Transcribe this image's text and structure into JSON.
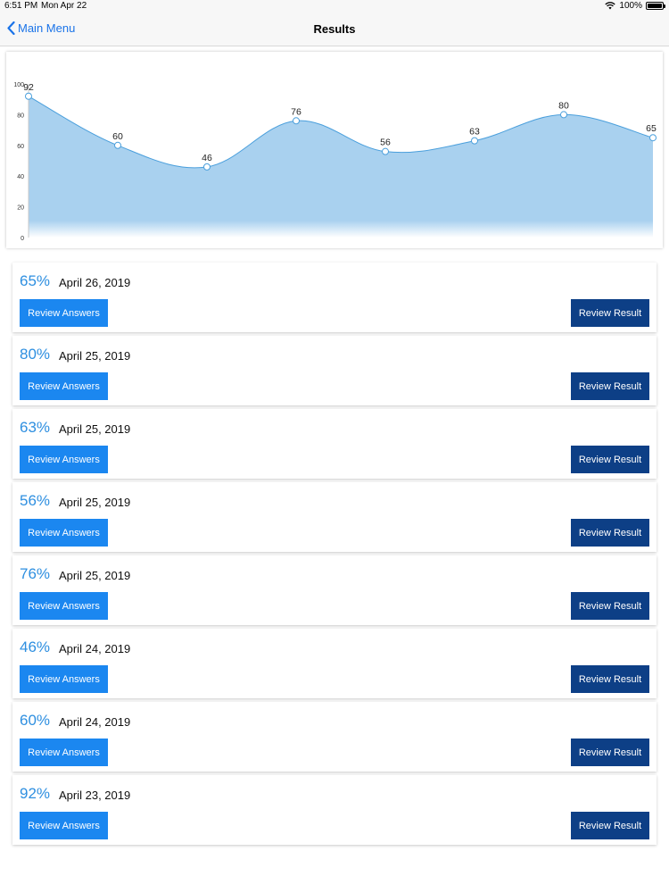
{
  "status_bar": {
    "time": "6:51 PM",
    "date": "Mon Apr 22",
    "battery": "100%"
  },
  "nav": {
    "back_label": "Main Menu",
    "title": "Results"
  },
  "chart_data": {
    "type": "area",
    "x": [
      1,
      2,
      3,
      4,
      5,
      6,
      7,
      8
    ],
    "values": [
      92,
      60,
      46,
      76,
      56,
      63,
      80,
      65
    ],
    "ylim": [
      0,
      100
    ],
    "yticks": [
      "0",
      "20",
      "40",
      "60",
      "80",
      "100"
    ],
    "grid": false,
    "legend": "none",
    "fill_color": "#a9d1ef",
    "line_color": "#4a9fdc"
  },
  "results": [
    {
      "score": "65%",
      "date": "April 26, 2019",
      "answers_label": "Review Answers",
      "result_label": "Review Result"
    },
    {
      "score": "80%",
      "date": "April 25, 2019",
      "answers_label": "Review Answers",
      "result_label": "Review Result"
    },
    {
      "score": "63%",
      "date": "April 25, 2019",
      "answers_label": "Review Answers",
      "result_label": "Review Result"
    },
    {
      "score": "56%",
      "date": "April 25, 2019",
      "answers_label": "Review Answers",
      "result_label": "Review Result"
    },
    {
      "score": "76%",
      "date": "April 25, 2019",
      "answers_label": "Review Answers",
      "result_label": "Review Result"
    },
    {
      "score": "46%",
      "date": "April 24, 2019",
      "answers_label": "Review Answers",
      "result_label": "Review Result"
    },
    {
      "score": "60%",
      "date": "April 24, 2019",
      "answers_label": "Review Answers",
      "result_label": "Review Result"
    },
    {
      "score": "92%",
      "date": "April 23, 2019",
      "answers_label": "Review Answers",
      "result_label": "Review Result"
    }
  ],
  "colors": {
    "accent": "#1b87f0",
    "dark_button": "#0d3f86",
    "score_text": "#2e8fe0"
  },
  "icons": {
    "back": "chevron-left-icon",
    "wifi": "wifi-icon",
    "battery": "battery-icon"
  }
}
